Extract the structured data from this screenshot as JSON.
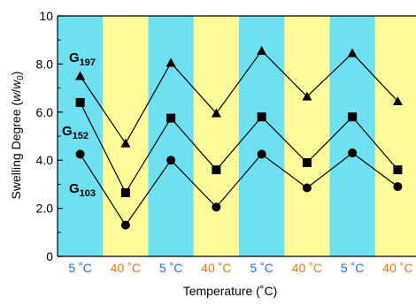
{
  "chart_data": {
    "type": "line",
    "xlabel": "Temperature (˚C)",
    "ylabel": {
      "prefix": "Swelling Degree (",
      "w": "w",
      "slash": "/",
      "w0": "w",
      "sub0": "0",
      "suffix": ")"
    },
    "ylim": [
      0,
      10
    ],
    "yticks": [
      0,
      2.0,
      4.0,
      6.0,
      8.0,
      10
    ],
    "ytick_labels": [
      "0",
      "2.0",
      "4.0",
      "6.0",
      "8.0",
      "10"
    ],
    "categories": [
      "5 ˚C",
      "40 ˚C",
      "5 ˚C",
      "40 ˚C",
      "5 ˚C",
      "40 ˚C",
      "5 ˚C",
      "40 ˚C"
    ],
    "category_colors": [
      "#1a73e8",
      "#e8761a",
      "#1a73e8",
      "#e8761a",
      "#1a73e8",
      "#e8761a",
      "#1a73e8",
      "#e8761a"
    ],
    "band_colors": {
      "cold": "#6ee0f0",
      "warm": "#fdfb9a"
    },
    "series": [
      {
        "name": "G",
        "sub": "197",
        "marker": "triangle",
        "values": [
          7.5,
          4.7,
          8.05,
          5.95,
          8.55,
          6.65,
          8.45,
          6.45
        ]
      },
      {
        "name": "G",
        "sub": "152",
        "marker": "square",
        "values": [
          6.4,
          2.65,
          5.75,
          3.6,
          5.8,
          3.9,
          5.8,
          3.6
        ]
      },
      {
        "name": "G",
        "sub": "103",
        "marker": "circle",
        "values": [
          4.25,
          1.3,
          4.0,
          2.05,
          4.25,
          2.85,
          4.3,
          2.9
        ]
      }
    ]
  }
}
